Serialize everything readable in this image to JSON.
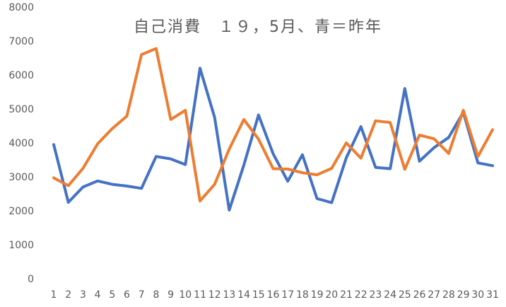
{
  "chart_data": {
    "type": "line",
    "title": "自己消費　１９，5月、青＝昨年",
    "xlabel": "",
    "ylabel": "",
    "categories": [
      "1",
      "2",
      "3",
      "4",
      "5",
      "6",
      "7",
      "8",
      "9",
      "10",
      "11",
      "12",
      "13",
      "14",
      "15",
      "16",
      "17",
      "18",
      "19",
      "20",
      "21",
      "22",
      "23",
      "24",
      "25",
      "26",
      "27",
      "28",
      "29",
      "30",
      "31"
    ],
    "ylim": [
      0,
      8000
    ],
    "yticks": [
      0,
      1000,
      2000,
      3000,
      4000,
      5000,
      6000,
      7000,
      8000
    ],
    "grid": false,
    "legend": "none",
    "series": [
      {
        "color": "#4472c4",
        "values": [
          3950,
          2250,
          2700,
          2880,
          2780,
          2730,
          2660,
          3600,
          3530,
          3360,
          6200,
          4750,
          2020,
          3350,
          4820,
          3680,
          2870,
          3650,
          2360,
          2240,
          3560,
          4480,
          3280,
          3240,
          5600,
          3460,
          3860,
          4160,
          4900,
          3410,
          3330
        ]
      },
      {
        "color": "#ed7d31",
        "values": [
          2970,
          2740,
          3250,
          3970,
          4420,
          4790,
          6600,
          6780,
          4690,
          4960,
          2290,
          2780,
          3820,
          4690,
          4110,
          3240,
          3230,
          3120,
          3060,
          3250,
          4000,
          3550,
          4650,
          4600,
          3220,
          4230,
          4120,
          3690,
          4960,
          3600,
          4390
        ]
      }
    ]
  }
}
